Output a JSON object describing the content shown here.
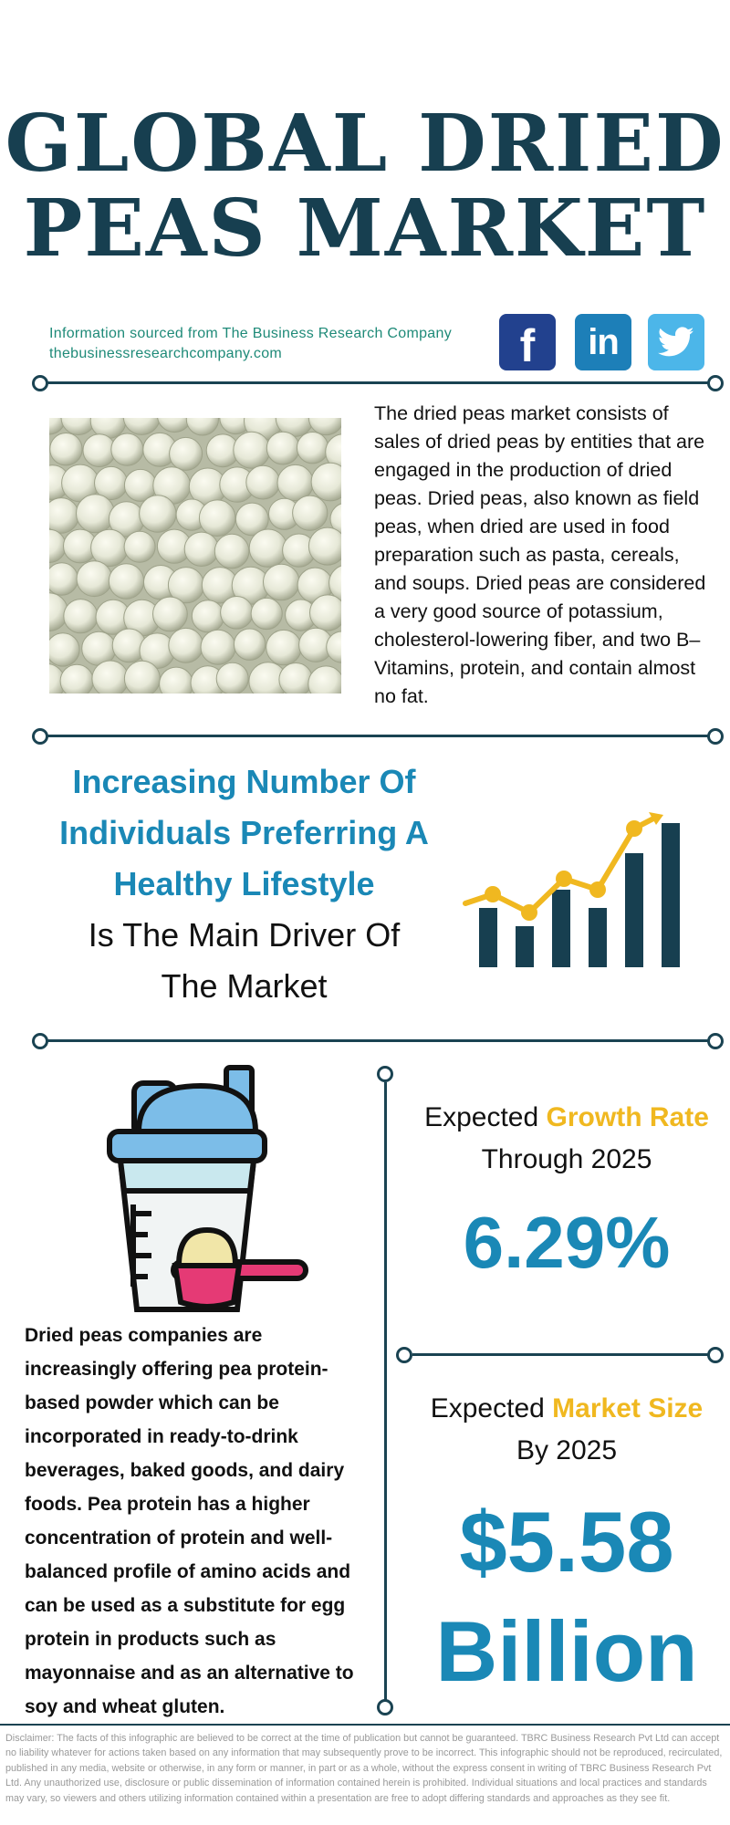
{
  "header": {
    "title_line1": "GLOBAL DRIED",
    "title_line2": "PEAS MARKET"
  },
  "source": {
    "line1": "Information sourced from The Business Research Company",
    "line2": "thebusinessresearchcompany.com"
  },
  "social": {
    "facebook_icon": "facebook-icon",
    "linkedin_icon": "linkedin-icon",
    "twitter_icon": "twitter-icon"
  },
  "intro": {
    "description": "The dried peas market consists of sales of dried peas by entities that are engaged in the production of dried peas. Dried peas, also known as field peas, when dried are used in food preparation such as pasta, cereals, and soups. Dried peas are considered a very good source of potassium, cholesterol-lowering fiber, and two B–Vitamins, protein, and contain almost no fat."
  },
  "driver": {
    "line1": "Increasing Number Of",
    "line2": "Individuals Preferring A",
    "line3": "Healthy Lifestyle",
    "line4": "Is The Main Driver Of",
    "line5": "The Market",
    "icon": "bar-chart-growth-icon"
  },
  "trend": {
    "icon": "protein-shaker-icon",
    "text": "Dried peas companies are increasingly offering pea protein-based powder which can be incorporated in ready-to-drink beverages, baked goods, and dairy foods. Pea protein has a higher concentration of protein and well-balanced profile of amino acids and can be used as a substitute for egg protein in products such as mayonnaise and as an alternative to soy and wheat gluten."
  },
  "growth": {
    "prefix": "Expected",
    "accent": "Growth Rate",
    "line2": "Through 2025",
    "value": "6.29%"
  },
  "market_size": {
    "prefix": "Expected",
    "accent": "Market Size",
    "line2": "By 2025",
    "value_line1": "$5.58",
    "value_line2": "Billion"
  },
  "disclaimer": "Disclaimer: The facts of this infographic are believed to be correct at the time of publication but cannot be guaranteed. TBRC Business Research Pvt Ltd can accept no liability whatever for actions taken based on any information that may subsequently prove to be incorrect. This infographic should not be reproduced, recirculated, published in any media, website or otherwise, in any form or manner, in part or as a whole, without the express consent in writing of TBRC Business Research Pvt Ltd. Any unauthorized use, disclosure or public dissemination of information contained herein is prohibited. Individual situations and local practices and standards may vary, so viewers and others utilizing information contained within a presentation are free to adopt differing standards and approaches as they see fit.",
  "colors": {
    "navy": "#173f50",
    "blue": "#1a88b6",
    "gold": "#f0b820",
    "green": "#1e8a78"
  }
}
